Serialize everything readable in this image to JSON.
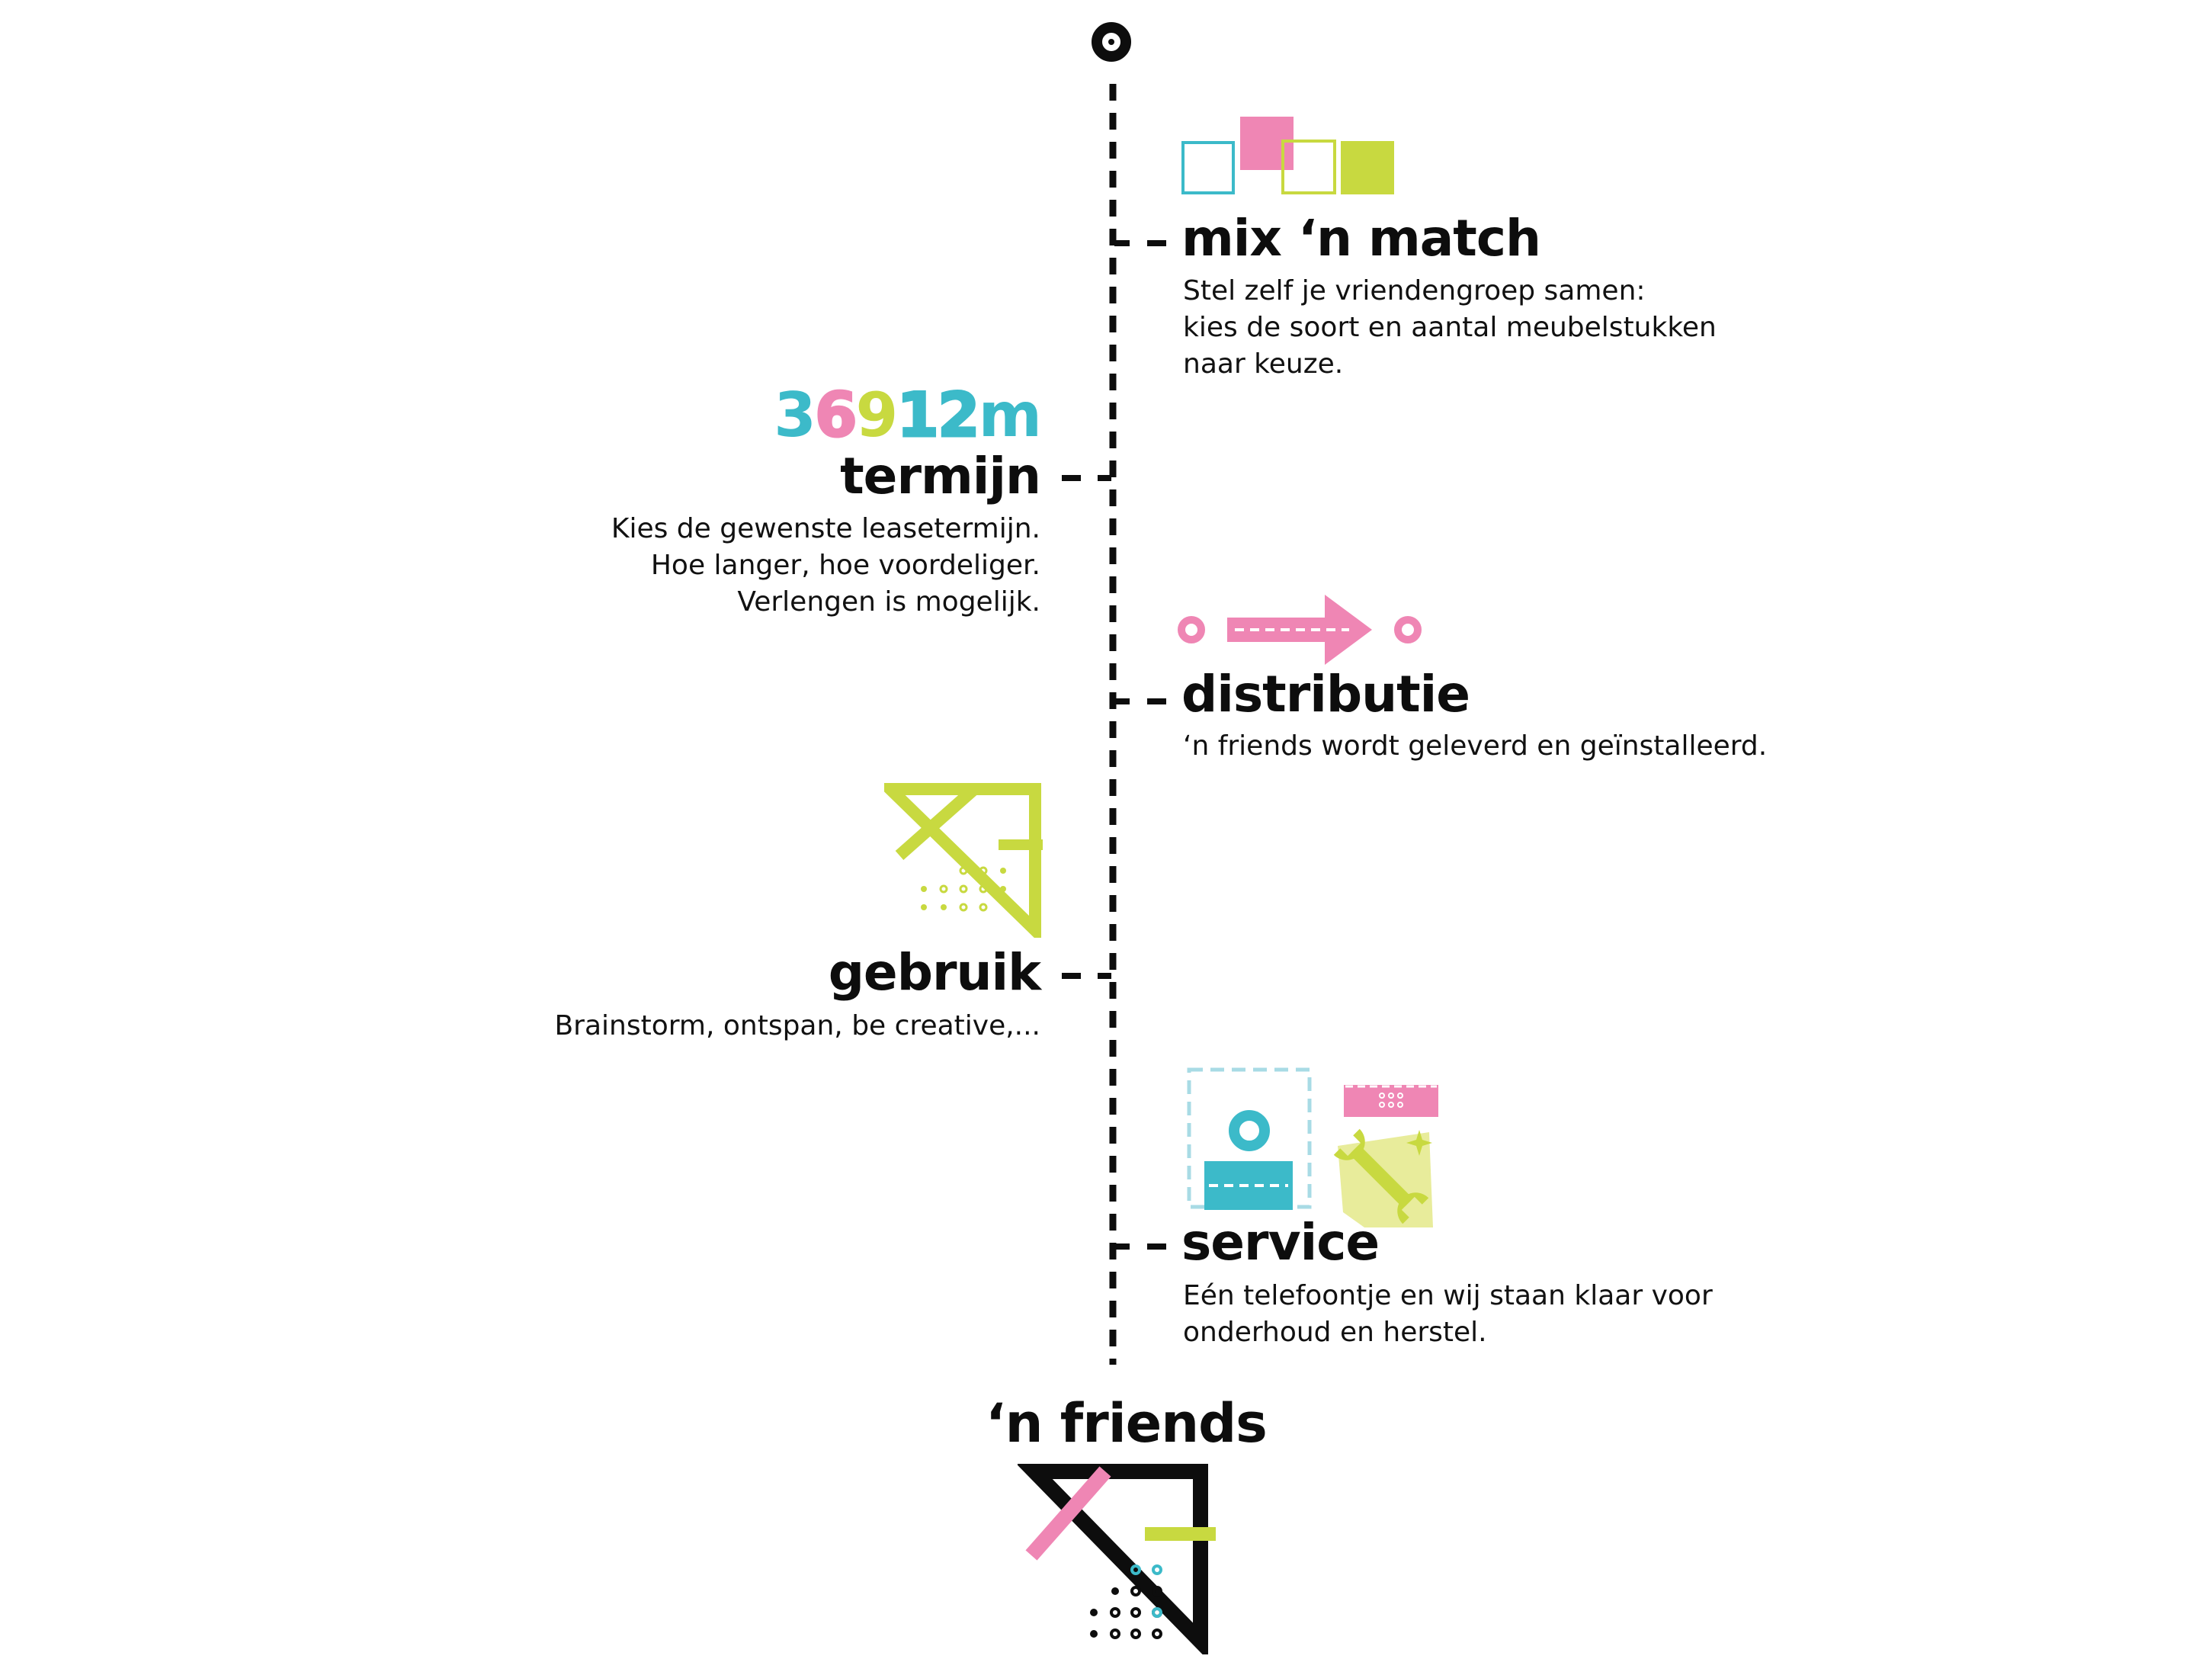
{
  "colors": {
    "ink": "#0d0d0d",
    "teal": "#3cbac9",
    "pink": "#ef86b4",
    "lime": "#c8d940",
    "lightblue": "#a8dbe5",
    "paleyellow": "#e8ec9b"
  },
  "timeline": {
    "start_icon": "circle-target-icon",
    "steps": [
      {
        "key": "mix",
        "title": "mix ‘n match",
        "icon": "color-squares-icon",
        "lines": [
          "Stel zelf je vriendengroep samen:",
          "kies de soort en aantal meubelstukken",
          "naar keuze."
        ]
      },
      {
        "key": "termijn",
        "title": "termijn",
        "icon": "months-counter-icon",
        "counter": [
          "3",
          "6",
          "9",
          "12",
          "m"
        ],
        "lines": [
          "Kies de gewenste leasetermijn.",
          "Hoe langer, hoe voordeliger.",
          "Verlengen is mogelijk."
        ]
      },
      {
        "key": "distributie",
        "title": "distributie",
        "icon": "delivery-arrow-icon",
        "lines": [
          "‘n friends wordt geleverd en geïnstalleerd."
        ]
      },
      {
        "key": "gebruik",
        "title": "gebruik",
        "icon": "set-square-icon",
        "lines": [
          "Brainstorm, ontspan, be creative,..."
        ]
      },
      {
        "key": "service",
        "title": "service",
        "icon": "service-tools-icon",
        "lines": [
          "Eén telefoontje en wij staan klaar voor",
          "onderhoud en herstel."
        ]
      }
    ]
  },
  "brand": {
    "name": "‘n friends",
    "logo_icon": "friends-logo-icon"
  }
}
